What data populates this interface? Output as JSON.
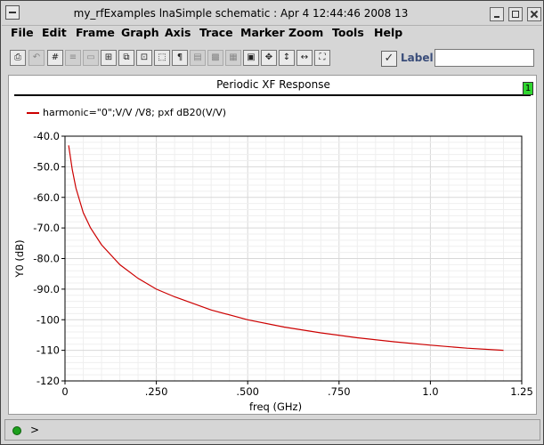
{
  "window": {
    "title": "my_rfExamples lnaSimple schematic : Apr  4 12:44:46 2008 13"
  },
  "menu": [
    "File",
    "Edit",
    "Frame",
    "Graph",
    "Axis",
    "Trace",
    "Marker",
    "Zoom",
    "Tools",
    "Help"
  ],
  "toolbar": {
    "icons": [
      "print-icon",
      "undo-icon",
      "grid-icon",
      "strips-icon",
      "copy-frame-icon",
      "zoom-fit-icon",
      "zoom-box-icon",
      "zoom-x-icon",
      "annotate-icon",
      "dim-a-icon",
      "dim-b-icon",
      "dim-c-icon",
      "calculator-icon",
      "expand-horizontal-icon",
      "expand-vertical-icon",
      "fit-all-icon",
      "fit-window-icon"
    ],
    "label_checkbox": "✓",
    "label_text": "Label",
    "label_input_value": ""
  },
  "plot": {
    "title": "Periodic XF Response",
    "subwindow_number": "1",
    "legend": "harmonic=\"0\";V/V /V8; pxf dB20(V/V)"
  },
  "chart_data": {
    "type": "line",
    "title": "Periodic XF Response",
    "xlabel": "freq (GHz)",
    "ylabel": "Y0 (dB)",
    "xlim": [
      0,
      1.25
    ],
    "ylim": [
      -120,
      -40
    ],
    "x_tick_labels": [
      "0",
      ".250",
      ".500",
      ".750",
      "1.0",
      "1.25"
    ],
    "x_ticks": [
      0,
      0.25,
      0.5,
      0.75,
      1.0,
      1.25
    ],
    "y_tick_labels": [
      "-40.0",
      "-50.0",
      "-60.0",
      "-70.0",
      "-80.0",
      "-90.0",
      "-100",
      "-110",
      "-120"
    ],
    "y_ticks": [
      -40,
      -50,
      -60,
      -70,
      -80,
      -90,
      -100,
      -110,
      -120
    ],
    "grid": true,
    "series": [
      {
        "name": "harmonic=\"0\";V/V /V8; pxf dB20(V/V)",
        "color": "#cc0000",
        "x": [
          0.01,
          0.02,
          0.03,
          0.05,
          0.07,
          0.1,
          0.15,
          0.2,
          0.25,
          0.3,
          0.4,
          0.5,
          0.6,
          0.7,
          0.8,
          0.9,
          1.0,
          1.1,
          1.2
        ],
        "y": [
          -43,
          -51,
          -57,
          -65,
          -70,
          -75.5,
          -82,
          -86.5,
          -90,
          -92.5,
          -96.8,
          -100,
          -102.4,
          -104.3,
          -105.9,
          -107.2,
          -108.3,
          -109.3,
          -110
        ]
      }
    ]
  },
  "status": {
    "prompt": ">"
  }
}
